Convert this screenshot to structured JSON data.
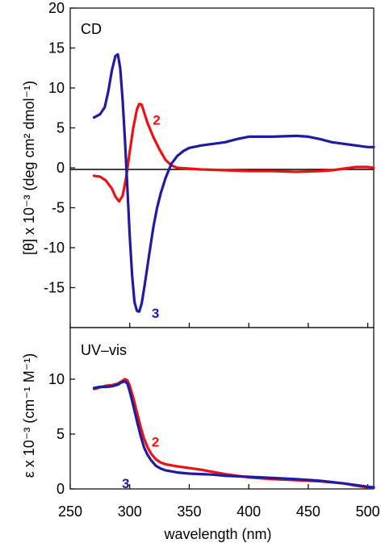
{
  "figure": {
    "xlabel": "wavelength (nm)",
    "colors": {
      "series_2": "#ee1111",
      "series_3": "#1f1ca0",
      "axis": "#000000",
      "zero_line": "#000000"
    }
  },
  "chart_data": [
    {
      "type": "line",
      "panel_label": "CD",
      "xlabel": "wavelength (nm)",
      "ylabel": "[θ] x 10⁻³ (deg cm² dmol⁻¹)",
      "xlim": [
        250,
        505
      ],
      "ylim": [
        -20,
        20
      ],
      "xticks": [
        250,
        300,
        350,
        400,
        450,
        500
      ],
      "yticks": [
        20,
        15,
        10,
        5,
        0,
        -5,
        -10,
        -15
      ],
      "ytick_labels": [
        "20",
        "15",
        "10",
        "5",
        "0",
        "-5",
        "-10",
        "-15"
      ],
      "grid": false,
      "zero_line": true,
      "series": [
        {
          "name": "2",
          "color": "#ee1111",
          "x": [
            270,
            275,
            280,
            285,
            288,
            291,
            294,
            297,
            300,
            303,
            306,
            308,
            310,
            312,
            315,
            320,
            325,
            330,
            335,
            340,
            350,
            360,
            380,
            400,
            420,
            440,
            460,
            470,
            480,
            490,
            500,
            505
          ],
          "y": [
            -1.0,
            -1.1,
            -1.6,
            -2.6,
            -3.6,
            -4.2,
            -3.5,
            -1.2,
            2.0,
            5.0,
            7.3,
            8.0,
            7.9,
            7.0,
            5.6,
            3.8,
            2.3,
            1.0,
            0.3,
            0.0,
            -0.1,
            -0.2,
            -0.3,
            -0.4,
            -0.4,
            -0.5,
            -0.4,
            -0.3,
            -0.1,
            0.1,
            0.1,
            0.0
          ],
          "label_at": [
            314,
            6.0
          ]
        },
        {
          "name": "3",
          "color": "#1f1ca0",
          "x": [
            270,
            275,
            279,
            282,
            285,
            288,
            290,
            292,
            294,
            296,
            298,
            300,
            302,
            304,
            306,
            308,
            310,
            312,
            314,
            316,
            318,
            320,
            323,
            326,
            330,
            335,
            340,
            345,
            350,
            360,
            370,
            380,
            390,
            400,
            420,
            440,
            450,
            460,
            470,
            480,
            490,
            500,
            505
          ],
          "y": [
            6.3,
            6.7,
            7.6,
            9.6,
            12.2,
            14.0,
            14.2,
            12.5,
            8.5,
            3.5,
            -2.5,
            -8.5,
            -13.5,
            -16.8,
            -17.9,
            -18.0,
            -17.0,
            -15.2,
            -13.2,
            -11.2,
            -9.2,
            -7.3,
            -5.0,
            -3.2,
            -1.3,
            0.5,
            1.5,
            2.1,
            2.5,
            2.8,
            3.0,
            3.2,
            3.6,
            3.9,
            3.9,
            4.0,
            3.9,
            3.6,
            3.2,
            3.0,
            2.8,
            2.6,
            2.6
          ],
          "label_at": [
            313,
            -18.2
          ]
        }
      ]
    },
    {
      "type": "line",
      "panel_label": "UV–vis",
      "xlabel": "wavelength (nm)",
      "ylabel": "ε x 10⁻³ (cm⁻¹ M⁻¹)",
      "xlim": [
        250,
        505
      ],
      "ylim": [
        0,
        14.7
      ],
      "xticks": [
        250,
        300,
        350,
        400,
        450,
        500
      ],
      "yticks": [
        10,
        5,
        0
      ],
      "ytick_labels": [
        "10",
        "5",
        "0"
      ],
      "grid": false,
      "series": [
        {
          "name": "2",
          "color": "#ee1111",
          "x": [
            270,
            275,
            280,
            285,
            290,
            293,
            296,
            298,
            300,
            303,
            306,
            309,
            312,
            315,
            318,
            322,
            326,
            330,
            335,
            340,
            350,
            360,
            370,
            380,
            400,
            420,
            440,
            460,
            480,
            490,
            500,
            505
          ],
          "y": [
            9.1,
            9.25,
            9.4,
            9.45,
            9.6,
            9.8,
            10.0,
            9.9,
            9.4,
            8.3,
            7.0,
            5.7,
            4.6,
            3.8,
            3.2,
            2.7,
            2.4,
            2.25,
            2.15,
            2.05,
            1.9,
            1.75,
            1.55,
            1.35,
            1.05,
            0.9,
            0.8,
            0.7,
            0.5,
            0.3,
            0.15,
            0.1
          ],
          "label_at": [
            313,
            4.3
          ]
        },
        {
          "name": "3",
          "color": "#1f1ca0",
          "x": [
            270,
            275,
            280,
            285,
            290,
            293,
            296,
            298,
            300,
            303,
            306,
            309,
            312,
            315,
            318,
            322,
            326,
            330,
            335,
            340,
            350,
            360,
            370,
            380,
            400,
            420,
            440,
            460,
            480,
            490,
            500,
            505
          ],
          "y": [
            9.2,
            9.3,
            9.3,
            9.35,
            9.5,
            9.7,
            9.8,
            9.6,
            8.9,
            7.6,
            6.2,
            4.9,
            3.8,
            3.1,
            2.6,
            2.1,
            1.85,
            1.7,
            1.6,
            1.5,
            1.4,
            1.35,
            1.3,
            1.2,
            1.1,
            1.0,
            0.9,
            0.75,
            0.5,
            0.35,
            0.2,
            0.15
          ],
          "label_at": [
            288,
            0.5
          ]
        }
      ]
    }
  ]
}
